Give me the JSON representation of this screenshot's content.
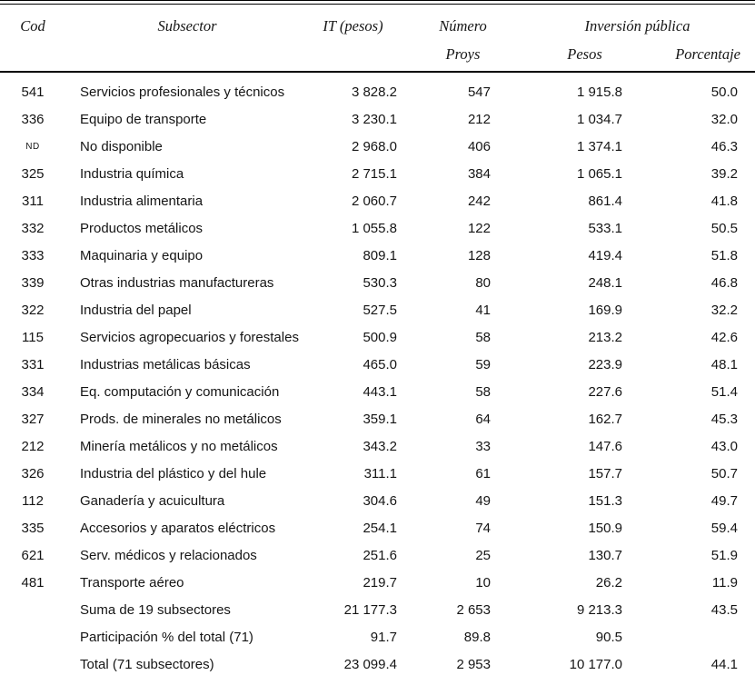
{
  "table": {
    "headers": {
      "cod": "Cod",
      "subsector": "Subsector",
      "it": "IT (pesos)",
      "numero": "Número",
      "proys": "Proys",
      "inversion": "Inversión pública",
      "pesos": "Pesos",
      "porcentaje": "Porcentaje"
    },
    "rows": [
      {
        "cod": "541",
        "subsector": "Servicios profesionales y técnicos",
        "it": "3 828.2",
        "proys": "547",
        "pesos": "1 915.8",
        "pct": "50.0"
      },
      {
        "cod": "336",
        "subsector": "Equipo de transporte",
        "it": "3 230.1",
        "proys": "212",
        "pesos": "1 034.7",
        "pct": "32.0"
      },
      {
        "cod": "ND",
        "subsector": "No disponible",
        "it": "2 968.0",
        "proys": "406",
        "pesos": "1 374.1",
        "pct": "46.3"
      },
      {
        "cod": "325",
        "subsector": "Industria química",
        "it": "2 715.1",
        "proys": "384",
        "pesos": "1 065.1",
        "pct": "39.2"
      },
      {
        "cod": "311",
        "subsector": "Industria alimentaria",
        "it": "2 060.7",
        "proys": "242",
        "pesos": "861.4",
        "pct": "41.8"
      },
      {
        "cod": "332",
        "subsector": "Productos metálicos",
        "it": "1 055.8",
        "proys": "122",
        "pesos": "533.1",
        "pct": "50.5"
      },
      {
        "cod": "333",
        "subsector": "Maquinaria y equipo",
        "it": "809.1",
        "proys": "128",
        "pesos": "419.4",
        "pct": "51.8"
      },
      {
        "cod": "339",
        "subsector": "Otras industrias manufactureras",
        "it": "530.3",
        "proys": "80",
        "pesos": "248.1",
        "pct": "46.8"
      },
      {
        "cod": "322",
        "subsector": "Industria del papel",
        "it": "527.5",
        "proys": "41",
        "pesos": "169.9",
        "pct": "32.2"
      },
      {
        "cod": "115",
        "subsector": "Servicios agropecuarios y forestales",
        "it": "500.9",
        "proys": "58",
        "pesos": "213.2",
        "pct": "42.6"
      },
      {
        "cod": "331",
        "subsector": "Industrias metálicas básicas",
        "it": "465.0",
        "proys": "59",
        "pesos": "223.9",
        "pct": "48.1"
      },
      {
        "cod": "334",
        "subsector": "Eq. computación y comunicación",
        "it": "443.1",
        "proys": "58",
        "pesos": "227.6",
        "pct": "51.4"
      },
      {
        "cod": "327",
        "subsector": "Prods. de minerales no metálicos",
        "it": "359.1",
        "proys": "64",
        "pesos": "162.7",
        "pct": "45.3"
      },
      {
        "cod": "212",
        "subsector": "Minería metálicos y no metálicos",
        "it": "343.2",
        "proys": "33",
        "pesos": "147.6",
        "pct": "43.0"
      },
      {
        "cod": "326",
        "subsector": "Industria del plástico y del hule",
        "it": "311.1",
        "proys": "61",
        "pesos": "157.7",
        "pct": "50.7"
      },
      {
        "cod": "112",
        "subsector": "Ganadería y acuicultura",
        "it": "304.6",
        "proys": "49",
        "pesos": "151.3",
        "pct": "49.7"
      },
      {
        "cod": "335",
        "subsector": "Accesorios y aparatos eléctricos",
        "it": "254.1",
        "proys": "74",
        "pesos": "150.9",
        "pct": "59.4"
      },
      {
        "cod": "621",
        "subsector": "Serv. médicos y relacionados",
        "it": "251.6",
        "proys": "25",
        "pesos": "130.7",
        "pct": "51.9"
      },
      {
        "cod": "481",
        "subsector": "Transporte aéreo",
        "it": "219.7",
        "proys": "10",
        "pesos": "26.2",
        "pct": "11.9"
      },
      {
        "cod": "",
        "subsector": "Suma de 19 subsectores",
        "it": "21 177.3",
        "proys": "2 653",
        "pesos": "9 213.3",
        "pct": "43.5"
      },
      {
        "cod": "",
        "subsector": "Participación % del total (71)",
        "it": "91.7",
        "proys": "89.8",
        "pesos": "90.5",
        "pct": ""
      },
      {
        "cod": "",
        "subsector": "Total (71 subsectores)",
        "it": "23 099.4",
        "proys": "2 953",
        "pesos": "10 177.0",
        "pct": "44.1"
      }
    ]
  }
}
